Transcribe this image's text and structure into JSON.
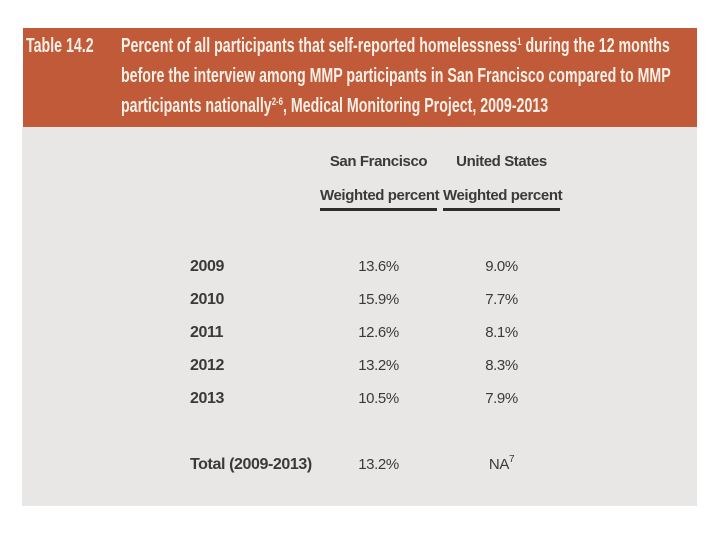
{
  "banner": {
    "label": "Table 14.2",
    "line1_text": "Percent of all participants that self-reported homelessness",
    "line1_sup": "1",
    "line1_rest": " during the 12 months",
    "line2": "before the interview among MMP participants in San Francisco compared to MMP",
    "line3_text": "participants nationally",
    "line3_sup": "2-6",
    "line3_rest": ", Medical Monitoring Project, 2009-2013"
  },
  "table": {
    "columns": [
      {
        "group": "San Francisco",
        "measure": "Weighted percent"
      },
      {
        "group": "United States",
        "measure": "Weighted percent"
      }
    ],
    "rows": [
      {
        "label": "2009",
        "sf": "13.6%",
        "us": "9.0%"
      },
      {
        "label": "2010",
        "sf": "15.9%",
        "us": "7.7%"
      },
      {
        "label": "2011",
        "sf": "12.6%",
        "us": "8.1%"
      },
      {
        "label": "2012",
        "sf": "13.2%",
        "us": "8.3%"
      },
      {
        "label": "2013",
        "sf": "10.5%",
        "us": "7.9%"
      }
    ],
    "total": {
      "label": "Total (2009-2013)",
      "sf": "13.2%",
      "us": "NA",
      "us_sup": "7"
    }
  },
  "colors": {
    "banner_bg": "#c15a38",
    "panel_bg": "#e8e7e5",
    "text_dark": "#3a3a3a",
    "banner_text": "#f7f0e7",
    "underline": "#2d2d2d"
  }
}
